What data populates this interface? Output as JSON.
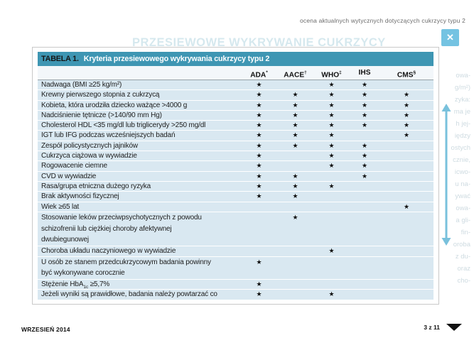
{
  "page": {
    "header_note": "ocena aktualnych wytycznych dotyczących cukrzycy typu 2",
    "close_glyph": "✕",
    "background_title": "PRZESIEWOWE WYKRYWANIE CUKRZYCY",
    "background_fragments": [
      "owa-",
      "g/m²)",
      "zyka:",
      "ma je",
      "h jej-",
      "iędzy",
      "ostych",
      "cznie,",
      "icwo-",
      "u na-",
      "ywać",
      "owa-",
      "a gli-",
      "fin-",
      "oroba",
      "z du-",
      "oraz",
      "cho-"
    ],
    "footer": {
      "issue": "WRZESIEŃ 2014",
      "page_indicator": "3 z 11"
    }
  },
  "colors": {
    "table_header": "#3e96b3",
    "row_background": "#d9e8f1",
    "close_button": "#74c3e2",
    "scroll_arrow": "#79c1dc"
  },
  "table": {
    "title_prefix": "TABELA 1.",
    "title": "Kryteria przesiewowego wykrywania cukrzycy typu 2",
    "star": "★",
    "columns": [
      {
        "label": "ADA",
        "mark": "*"
      },
      {
        "label": "AACE",
        "mark": "†"
      },
      {
        "label": "WHO",
        "mark": "‡"
      },
      {
        "label": "IHS",
        "mark": ""
      },
      {
        "label": "CMS",
        "mark": "§"
      }
    ],
    "rows": [
      {
        "lines": [
          "Nadwaga (BMI ≥25 kg/m²)"
        ],
        "marks": [
          1,
          0,
          1,
          1,
          0
        ]
      },
      {
        "lines": [
          "Krewny pierwszego stopnia z cukrzycą"
        ],
        "marks": [
          1,
          1,
          1,
          1,
          1
        ]
      },
      {
        "lines": [
          "Kobieta, która urodziła dziecko ważące >4000 g"
        ],
        "marks": [
          1,
          1,
          1,
          1,
          1
        ]
      },
      {
        "lines": [
          "Nadciśnienie tętnicze (>140/90 mm Hg)"
        ],
        "marks": [
          1,
          1,
          1,
          1,
          1
        ]
      },
      {
        "lines": [
          "Cholesterol HDL <35 mg/dl lub triglicerydy >250 mg/dl"
        ],
        "marks": [
          1,
          1,
          1,
          1,
          1
        ]
      },
      {
        "lines": [
          "IGT lub IFG podczas wcześniejszych badań"
        ],
        "marks": [
          1,
          1,
          1,
          0,
          1
        ]
      },
      {
        "lines": [
          "Zespół policystycznych jajników"
        ],
        "marks": [
          1,
          1,
          1,
          1,
          0
        ]
      },
      {
        "lines": [
          "Cukrzyca ciążowa w wywiadzie"
        ],
        "marks": [
          1,
          0,
          1,
          1,
          0
        ]
      },
      {
        "lines": [
          "Rogowacenie ciemne"
        ],
        "marks": [
          1,
          0,
          1,
          1,
          0
        ]
      },
      {
        "lines": [
          "CVD w wywiadzie"
        ],
        "marks": [
          1,
          1,
          0,
          1,
          0
        ]
      },
      {
        "lines": [
          "Rasa/grupa etniczna dużego ryzyka"
        ],
        "marks": [
          1,
          1,
          1,
          0,
          0
        ]
      },
      {
        "lines": [
          "Brak aktywności fizycznej"
        ],
        "marks": [
          1,
          1,
          0,
          0,
          0
        ]
      },
      {
        "lines": [
          "Wiek ≥65 lat"
        ],
        "marks": [
          0,
          0,
          0,
          0,
          1
        ]
      },
      {
        "lines": [
          "Stosowanie leków przeciwpsychotycznych z powodu",
          "schizofrenii lub ciężkiej choroby afektywnej",
          "dwubiegunowej"
        ],
        "marks": [
          0,
          1,
          0,
          0,
          0
        ]
      },
      {
        "lines": [
          "Choroba układu naczyniowego w wywiadzie"
        ],
        "marks": [
          0,
          0,
          1,
          0,
          0
        ]
      },
      {
        "lines": [
          "U osób ze stanem przedcukrzycowym badania powinny",
          "być wykonywane corocznie"
        ],
        "marks": [
          1,
          0,
          0,
          0,
          0
        ]
      },
      {
        "parts": [
          {
            "text": "Stężenie HbA"
          },
          {
            "text": "1c",
            "sub": true
          },
          {
            "text": " ≥5,7%"
          }
        ],
        "marks": [
          1,
          0,
          0,
          0,
          0
        ]
      },
      {
        "lines": [
          "Jeżeli wyniki są prawidłowe, badania należy powtarzać co"
        ],
        "marks": [
          1,
          0,
          1,
          0,
          0
        ]
      }
    ]
  }
}
